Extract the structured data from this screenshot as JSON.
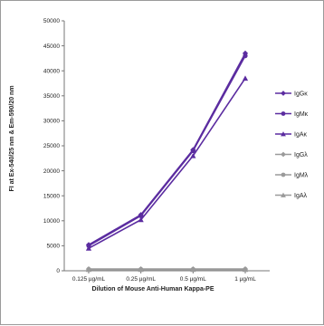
{
  "chart_data": {
    "type": "line",
    "title": "",
    "xlabel": "Dilution of Mouse Anti-Human Kappa-PE",
    "ylabel": "FI at Ex-540/25 nm & Em-590/20 nm",
    "categories": [
      "0.125 µg/mL",
      "0.25 µg/mL",
      "0.5 µg/mL",
      "1 µg/mL"
    ],
    "ylim": [
      0,
      50000
    ],
    "yticks": [
      0,
      5000,
      10000,
      15000,
      20000,
      25000,
      30000,
      35000,
      40000,
      45000,
      50000
    ],
    "grid": false,
    "legend_position": "right",
    "series": [
      {
        "name": "IgGκ",
        "values": [
          5200,
          11200,
          24200,
          43500
        ],
        "color": "#5b2ca0",
        "marker": "diamond"
      },
      {
        "name": "IgMκ",
        "values": [
          5000,
          11000,
          24000,
          43000
        ],
        "color": "#5b2ca0",
        "marker": "circle"
      },
      {
        "name": "IgAκ",
        "values": [
          4500,
          10200,
          23000,
          38500
        ],
        "color": "#5b2ca0",
        "marker": "triangle"
      },
      {
        "name": "IgGλ",
        "values": [
          350,
          350,
          350,
          350
        ],
        "color": "#9a9a9a",
        "marker": "diamond"
      },
      {
        "name": "IgMλ",
        "values": [
          300,
          300,
          300,
          300
        ],
        "color": "#9a9a9a",
        "marker": "circle"
      },
      {
        "name": "IgAλ",
        "values": [
          250,
          250,
          250,
          250
        ],
        "color": "#9a9a9a",
        "marker": "triangle"
      }
    ]
  }
}
